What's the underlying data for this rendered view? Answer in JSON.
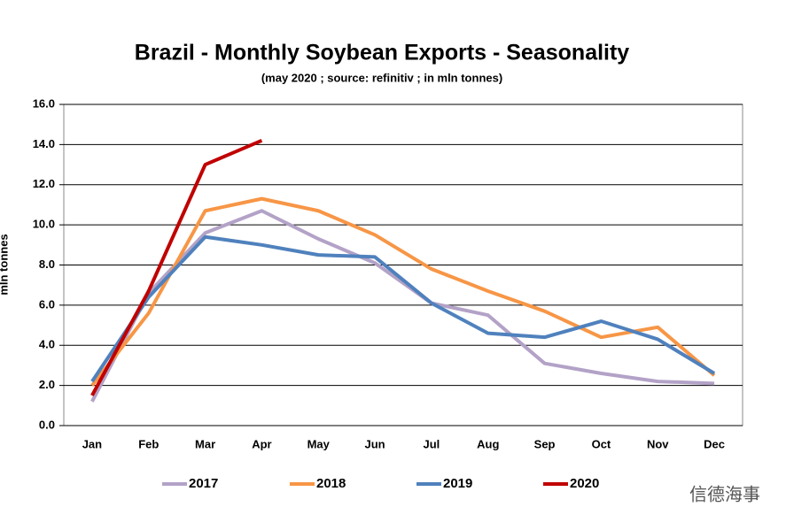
{
  "chart_data": {
    "type": "line",
    "title": "Brazil - Monthly Soybean Exports - Seasonality",
    "subtitle": "(may 2020 ; source: refinitiv ; in mln tonnes)",
    "y_label": "mln tonnes",
    "watermark": "信德海事",
    "categories": [
      "Jan",
      "Feb",
      "Mar",
      "Apr",
      "May",
      "Jun",
      "Jul",
      "Aug",
      "Sep",
      "Oct",
      "Nov",
      "Dec"
    ],
    "series": [
      {
        "name": "2017",
        "color": "#b3a2c7",
        "values": [
          1.2,
          6.6,
          9.6,
          10.7,
          9.3,
          8.1,
          6.1,
          5.5,
          3.1,
          2.6,
          2.2,
          2.1
        ]
      },
      {
        "name": "2018",
        "color": "#f79646",
        "values": [
          2.0,
          5.6,
          10.7,
          11.3,
          10.7,
          9.5,
          7.8,
          6.7,
          5.7,
          4.4,
          4.9,
          2.5
        ]
      },
      {
        "name": "2019",
        "color": "#4f81bd",
        "values": [
          2.2,
          6.4,
          9.4,
          9.0,
          8.5,
          8.4,
          6.1,
          4.6,
          4.4,
          5.2,
          4.3,
          2.6
        ]
      },
      {
        "name": "2020",
        "color": "#c00000",
        "values": [
          1.5,
          6.7,
          13.0,
          14.2,
          null,
          null,
          null,
          null,
          null,
          null,
          null,
          null
        ]
      }
    ],
    "ylim": [
      0,
      16
    ],
    "yticks": [
      {
        "value": 0,
        "label": "0.0"
      },
      {
        "value": 2,
        "label": "2.0"
      },
      {
        "value": 4,
        "label": "4.0"
      },
      {
        "value": 6,
        "label": "6.0"
      },
      {
        "value": 8,
        "label": "8.0"
      },
      {
        "value": 10,
        "label": "10.0"
      },
      {
        "value": 12,
        "label": "12.0"
      },
      {
        "value": 14,
        "label": "14.0"
      },
      {
        "value": 16,
        "label": "16.0"
      }
    ],
    "grid": true,
    "legend": "bottom"
  }
}
